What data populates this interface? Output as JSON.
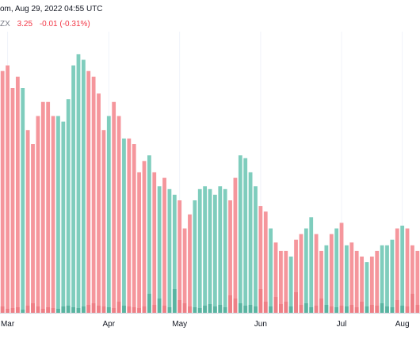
{
  "header": {
    "line1": "om, Aug 29, 2022 04:55 UTC",
    "symbol": "ZX",
    "price": "3.25",
    "change": "-0.01 (-0.31%)"
  },
  "colors": {
    "up": "#7fcdbd",
    "down": "#f5969c",
    "up_volume": "#5ab4a1",
    "down_volume": "#ee7f86",
    "grid": "#f0f3fa",
    "axis_line": "#d1d4dc",
    "axis_text": "#131722"
  },
  "chart_data": {
    "type": "bar",
    "title": "",
    "xlabel": "",
    "ylabel": "",
    "x_tick_labels": [
      "Mar",
      "Apr",
      "May",
      "Jun",
      "Jul",
      "Aug"
    ],
    "ylim": [
      0,
      100
    ],
    "grid": false,
    "legend": "none",
    "series": [
      {
        "values": [
          86,
          88,
          80,
          84,
          80,
          65,
          60,
          70,
          75,
          75,
          70,
          70,
          68,
          76,
          88,
          92,
          90,
          86,
          84,
          78,
          65,
          70,
          75,
          70,
          62,
          62,
          60,
          50,
          54,
          56,
          50,
          45,
          48,
          44,
          42,
          40,
          30,
          35,
          40,
          44,
          45,
          44,
          42,
          45,
          44,
          40,
          48,
          56,
          55,
          50,
          45,
          38,
          36,
          30,
          25,
          22,
          22,
          20,
          26,
          28,
          30,
          34,
          28,
          22,
          24,
          28,
          30,
          32,
          24,
          25,
          22,
          20,
          18,
          20,
          22,
          24,
          24,
          26,
          30,
          31,
          30,
          24,
          22
        ],
        "directions": [
          "d",
          "d",
          "d",
          "d",
          "u",
          "d",
          "d",
          "d",
          "d",
          "d",
          "d",
          "u",
          "u",
          "u",
          "u",
          "u",
          "u",
          "d",
          "d",
          "d",
          "d",
          "u",
          "d",
          "d",
          "u",
          "d",
          "d",
          "d",
          "d",
          "u",
          "d",
          "u",
          "d",
          "u",
          "u",
          "d",
          "d",
          "d",
          "u",
          "u",
          "u",
          "u",
          "u",
          "u",
          "u",
          "d",
          "d",
          "u",
          "u",
          "u",
          "u",
          "d",
          "d",
          "u",
          "d",
          "d",
          "d",
          "u",
          "d",
          "d",
          "u",
          "u",
          "d",
          "d",
          "u",
          "d",
          "u",
          "d",
          "u",
          "d",
          "d",
          "d",
          "u",
          "d",
          "d",
          "u",
          "u",
          "u",
          "d",
          "u",
          "d",
          "d",
          "d"
        ],
        "volumes": [
          8,
          5,
          6,
          7,
          4,
          9,
          12,
          8,
          5,
          7,
          6,
          5,
          8,
          9,
          7,
          6,
          8,
          10,
          12,
          9,
          8,
          7,
          6,
          14,
          9,
          8,
          7,
          6,
          8,
          24,
          10,
          18,
          9,
          7,
          30,
          16,
          12,
          8,
          7,
          6,
          9,
          11,
          8,
          10,
          7,
          22,
          18,
          12,
          9,
          10,
          8,
          30,
          14,
          8,
          20,
          11,
          14,
          8,
          26,
          10,
          12,
          7,
          9,
          18,
          10,
          8,
          7,
          9,
          8,
          10,
          7,
          14,
          8,
          10,
          9,
          12,
          8,
          7,
          16,
          9,
          8,
          24,
          10
        ]
      }
    ]
  }
}
